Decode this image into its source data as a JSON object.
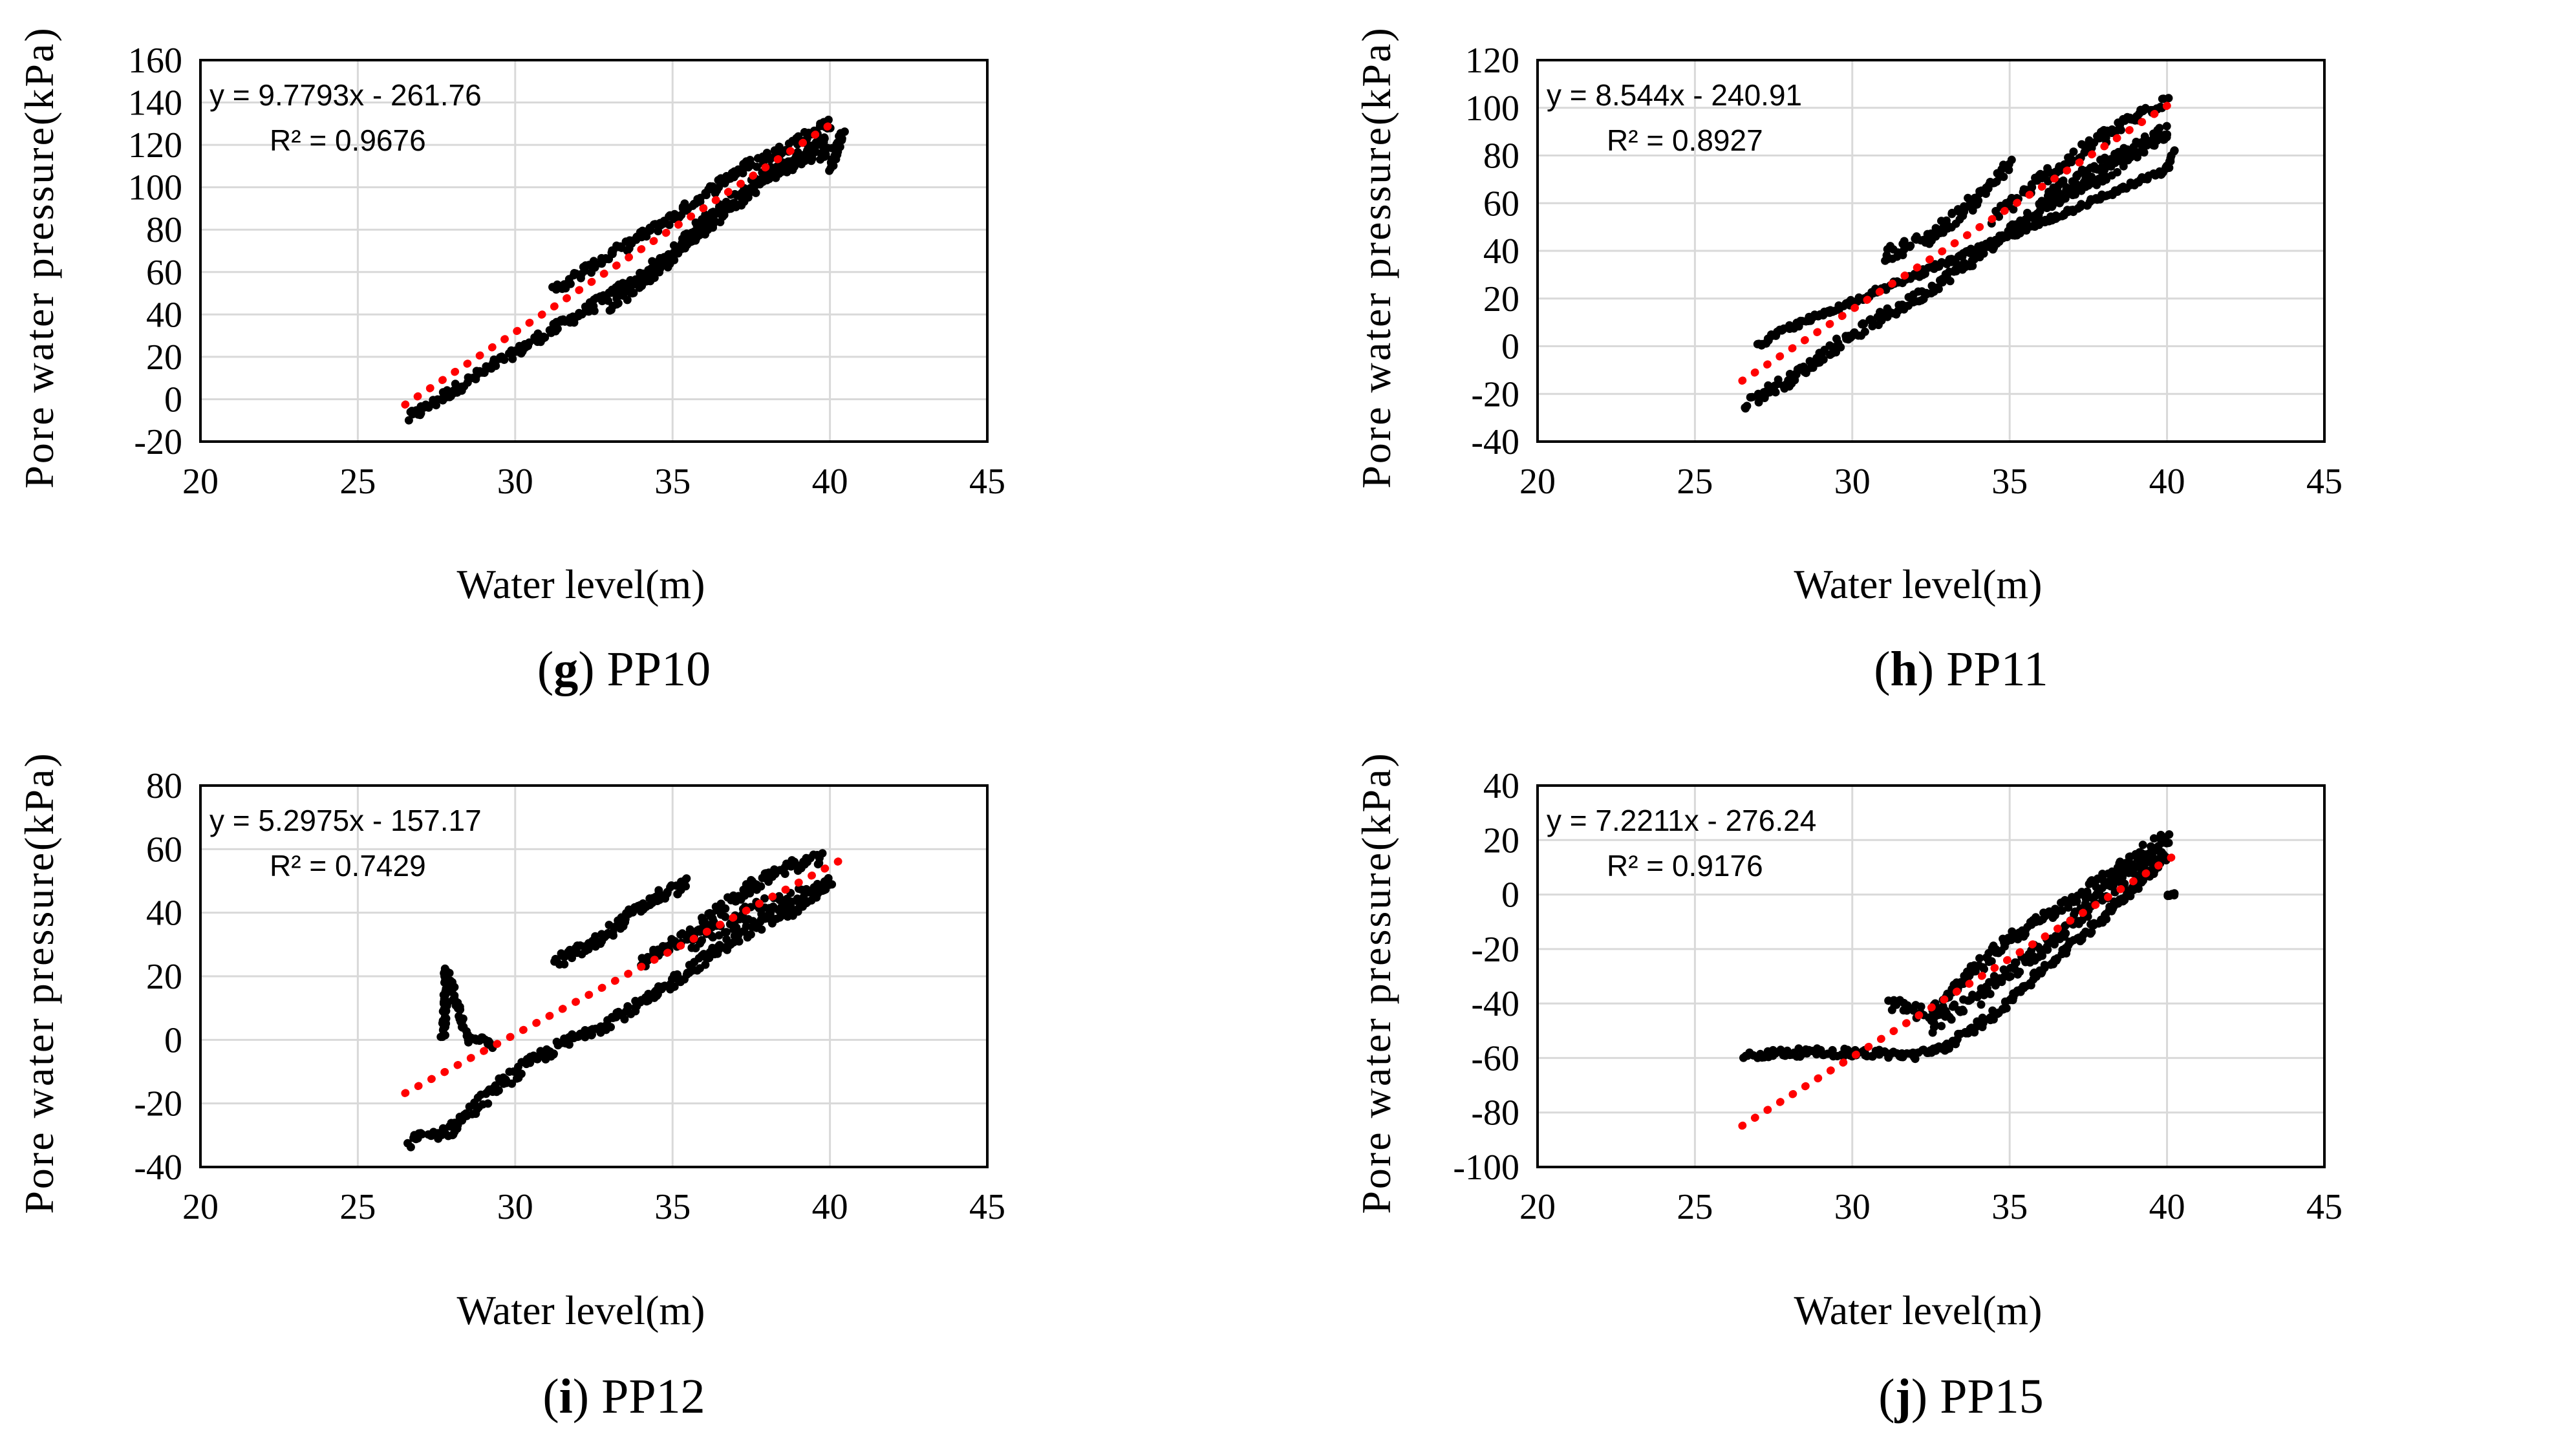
{
  "chart_data": [
    {
      "type": "scatter",
      "panel": "g",
      "caption_letter": "g",
      "caption_open": "(",
      "caption_close": ")",
      "caption_text": " PP10",
      "xlabel": "Water level(m)",
      "ylabel": "Pore water pressure(kPa)",
      "xlim": [
        20,
        45
      ],
      "ylim": [
        -20,
        160
      ],
      "xticks": [
        20,
        25,
        30,
        35,
        40,
        45
      ],
      "yticks": [
        -20,
        0,
        20,
        40,
        60,
        80,
        100,
        120,
        140,
        160
      ],
      "grid": true,
      "equation": "y = 9.7793x - 261.76",
      "r_squared": "R² = 0.9676",
      "trendline": {
        "slope": 9.7793,
        "intercept": -261.76,
        "x_range": [
          26.5,
          40.3
        ],
        "color": "#ff0000"
      },
      "clusters": [
        {
          "points": [
            [
              26.6,
              -9
            ],
            [
              28,
              4
            ],
            [
              30,
              22
            ],
            [
              32,
              40
            ],
            [
              34,
              58
            ],
            [
              36,
              80
            ],
            [
              38,
              104
            ],
            [
              40,
              126
            ]
          ],
          "jitter": 2.5
        },
        {
          "points": [
            [
              31.2,
              51
            ],
            [
              33,
              68
            ],
            [
              35,
              86
            ],
            [
              37,
              107
            ],
            [
              39,
              122
            ],
            [
              40,
              131
            ]
          ],
          "jitter": 2.5
        },
        {
          "points": [
            [
              33,
              44
            ],
            [
              34.5,
              60
            ],
            [
              36,
              84
            ],
            [
              38,
              106
            ],
            [
              40,
              118
            ]
          ],
          "jitter": 3
        },
        {
          "points": [
            [
              40,
              108
            ],
            [
              40.4,
              126
            ]
          ],
          "jitter": 0.5
        }
      ]
    },
    {
      "type": "scatter",
      "panel": "h",
      "caption_letter": "h",
      "caption_open": "(",
      "caption_close": ")",
      "caption_text": " PP11",
      "xlabel": "Water level(m)",
      "ylabel": "Pore water pressure(kPa)",
      "xlim": [
        20,
        45
      ],
      "ylim": [
        -40,
        120
      ],
      "xticks": [
        20,
        25,
        30,
        35,
        40,
        45
      ],
      "yticks": [
        -40,
        -20,
        0,
        20,
        40,
        60,
        80,
        100,
        120
      ],
      "grid": true,
      "equation": "y = 8.544x - 240.91",
      "r_squared": "R² = 0.8927",
      "trendline": {
        "slope": 8.544,
        "intercept": -240.91,
        "x_range": [
          26.5,
          40.3
        ],
        "color": "#ff0000"
      },
      "clusters": [
        {
          "points": [
            [
              26.6,
              -24
            ],
            [
              28,
              -14
            ],
            [
              30,
              5
            ],
            [
              32,
              20
            ],
            [
              34,
              38
            ],
            [
              36,
              58
            ],
            [
              38,
              72
            ],
            [
              40,
              90
            ]
          ],
          "jitter": 2.5
        },
        {
          "points": [
            [
              31,
              38
            ],
            [
              32.5,
              46
            ],
            [
              34,
              62
            ],
            [
              35,
              76
            ]
          ],
          "jitter": 3
        },
        {
          "points": [
            [
              34.5,
              54
            ],
            [
              36,
              70
            ],
            [
              38,
              88
            ],
            [
              40,
              104
            ]
          ],
          "jitter": 3
        },
        {
          "points": [
            [
              36,
              62
            ],
            [
              38,
              76
            ],
            [
              40,
              90
            ]
          ],
          "jitter": 3
        },
        {
          "points": [
            [
              27,
              0
            ],
            [
              27.7,
              6
            ],
            [
              40,
              74
            ],
            [
              40.2,
              82
            ]
          ],
          "jitter": 1
        }
      ]
    },
    {
      "type": "scatter",
      "panel": "i",
      "caption_letter": "i",
      "caption_open": "(",
      "caption_close": ")",
      "caption_text": " PP12",
      "xlabel": "Water level(m)",
      "ylabel": "Pore water pressure(kPa)",
      "xlim": [
        20,
        45
      ],
      "ylim": [
        -40,
        80
      ],
      "xticks": [
        20,
        25,
        30,
        35,
        40,
        45
      ],
      "yticks": [
        -40,
        -20,
        0,
        20,
        40,
        60,
        80
      ],
      "grid": true,
      "equation": "y = 5.2975x - 157.17",
      "r_squared": "R² = 0.7429",
      "trendline": {
        "slope": 5.2975,
        "intercept": -157.17,
        "x_range": [
          26.5,
          40.4
        ],
        "color": "#ff0000"
      },
      "clusters": [
        {
          "points": [
            [
              26.6,
              -32
            ],
            [
              28,
              -28
            ],
            [
              29.5,
              -14
            ],
            [
              31,
              -4
            ],
            [
              33,
              6
            ],
            [
              34.5,
              14
            ],
            [
              35.5,
              22
            ],
            [
              37,
              32
            ],
            [
              39,
              42
            ],
            [
              40,
              50
            ]
          ],
          "jitter": 2
        },
        {
          "points": [
            [
              31.2,
              24
            ],
            [
              32.5,
              30
            ],
            [
              33.5,
              38
            ],
            [
              34.5,
              45
            ],
            [
              35.5,
              49
            ]
          ],
          "jitter": 2
        },
        {
          "points": [
            [
              34,
              24
            ],
            [
              35.5,
              33
            ],
            [
              37,
              45
            ],
            [
              38.5,
              54
            ],
            [
              39.8,
              57
            ]
          ],
          "jitter": 2
        },
        {
          "points": [
            [
              35.5,
              30
            ],
            [
              37,
              38
            ],
            [
              38.5,
              44
            ],
            [
              40,
              48
            ]
          ],
          "jitter": 3
        },
        {
          "points": [
            [
              27.7,
              0
            ],
            [
              27.8,
              12
            ],
            [
              27.8,
              22
            ],
            [
              28.5,
              0
            ],
            [
              29,
              0
            ],
            [
              29.3,
              -2
            ]
          ],
          "jitter": 1
        }
      ]
    },
    {
      "type": "scatter",
      "panel": "j",
      "caption_letter": "j",
      "caption_open": "(",
      "caption_close": ")",
      "caption_text": " PP15",
      "xlabel": "Water level(m)",
      "ylabel": "Pore water pressure(kPa)",
      "xlim": [
        20,
        45
      ],
      "ylim": [
        -100,
        40
      ],
      "xticks": [
        20,
        25,
        30,
        35,
        40,
        45
      ],
      "yticks": [
        -100,
        -80,
        -60,
        -40,
        -20,
        0,
        20,
        40
      ],
      "grid": true,
      "equation": "y = 7.2211x - 276.24",
      "r_squared": "R² = 0.9176",
      "trendline": {
        "slope": 7.2211,
        "intercept": -276.24,
        "x_range": [
          26.5,
          40.4
        ],
        "color": "#ff0000"
      },
      "clusters": [
        {
          "points": [
            [
              26.6,
              -59
            ],
            [
              28,
              -58
            ],
            [
              30,
              -58
            ],
            [
              32,
              -59
            ],
            [
              33,
              -56
            ],
            [
              34.5,
              -44
            ],
            [
              36,
              -28
            ],
            [
              38,
              -8
            ],
            [
              40,
              14
            ]
          ],
          "jitter": 1.5
        },
        {
          "points": [
            [
              31.2,
              -40
            ],
            [
              32.5,
              -44
            ],
            [
              33.5,
              -32
            ],
            [
              35,
              -16
            ],
            [
              36.5,
              -6
            ],
            [
              38,
              6
            ],
            [
              40,
              22
            ]
          ],
          "jitter": 2.5
        },
        {
          "points": [
            [
              32.5,
              -48
            ],
            [
              34,
              -38
            ],
            [
              36,
              -20
            ],
            [
              38,
              0
            ],
            [
              40,
              18
            ]
          ],
          "jitter": 3
        },
        {
          "points": [
            [
              40,
              0
            ],
            [
              40.3,
              0
            ]
          ],
          "jitter": 0.5
        }
      ]
    }
  ]
}
